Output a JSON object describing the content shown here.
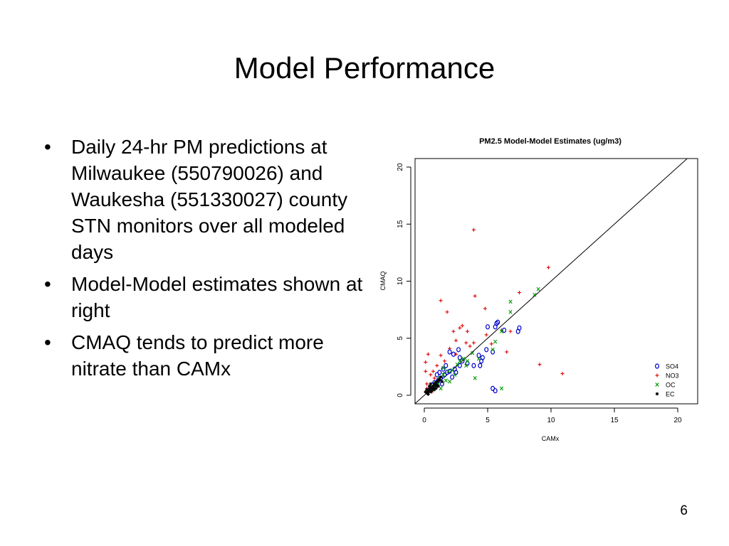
{
  "slide": {
    "title": "Model Performance",
    "page_number": "6",
    "bullets": [
      "Daily 24-hr PM predictions at Milwaukee (550790026) and  Waukesha (551330027) county STN monitors over all modeled days",
      "Model-Model estimates shown at right",
      "CMAQ tends to predict more nitrate than CAMx"
    ]
  },
  "chart_data": {
    "type": "scatter",
    "title": "PM2.5 Model-Model Estimates (ug/m3)",
    "xlabel": "CAMx",
    "ylabel": "CMAQ",
    "xlim": [
      0,
      20.5
    ],
    "ylim": [
      0,
      20.5
    ],
    "xticks": [
      "0",
      "5",
      "10",
      "15",
      "20"
    ],
    "yticks": [
      "0",
      "5",
      "10",
      "15",
      "20"
    ],
    "legend_position": "bottom-right",
    "reference_line": "y = x",
    "series": [
      {
        "name": "SO4",
        "marker": "o",
        "color": "#0000cc",
        "points": [
          [
            5.8,
            6.4
          ],
          [
            6.3,
            5.7
          ],
          [
            5.6,
            6.0
          ],
          [
            5.7,
            6.3
          ],
          [
            7.5,
            5.9
          ],
          [
            7.4,
            5.6
          ],
          [
            5.0,
            6.0
          ],
          [
            5.4,
            3.8
          ],
          [
            4.9,
            4.0
          ],
          [
            4.3,
            3.5
          ],
          [
            4.6,
            3.3
          ],
          [
            5.4,
            0.6
          ],
          [
            5.6,
            0.4
          ],
          [
            4.4,
            2.6
          ],
          [
            4.5,
            3.0
          ],
          [
            3.9,
            2.6
          ],
          [
            3.4,
            2.8
          ],
          [
            3.0,
            3.0
          ],
          [
            2.8,
            3.3
          ],
          [
            2.7,
            4.0
          ],
          [
            2.0,
            3.8
          ],
          [
            2.3,
            3.6
          ],
          [
            2.8,
            2.6
          ],
          [
            2.4,
            2.3
          ],
          [
            2.0,
            2.1
          ],
          [
            1.8,
            2.0
          ],
          [
            1.7,
            2.6
          ],
          [
            1.5,
            2.3
          ],
          [
            1.6,
            1.8
          ],
          [
            1.3,
            1.5
          ],
          [
            1.1,
            1.3
          ],
          [
            1.0,
            1.8
          ],
          [
            0.8,
            1.1
          ],
          [
            0.6,
            0.9
          ],
          [
            1.2,
            2.0
          ],
          [
            1.4,
            1.0
          ],
          [
            2.2,
            1.6
          ],
          [
            2.5,
            2.0
          ],
          [
            0.4,
            0.5
          ],
          [
            0.9,
            0.7
          ]
        ]
      },
      {
        "name": "NO3",
        "marker": "+",
        "color": "#dd0000",
        "points": [
          [
            3.9,
            14.5
          ],
          [
            9.8,
            11.2
          ],
          [
            7.5,
            9.0
          ],
          [
            4.0,
            8.7
          ],
          [
            1.3,
            8.3
          ],
          [
            1.8,
            7.3
          ],
          [
            4.8,
            7.6
          ],
          [
            6.8,
            5.6
          ],
          [
            6.1,
            5.7
          ],
          [
            3.0,
            6.1
          ],
          [
            2.8,
            5.9
          ],
          [
            3.4,
            5.6
          ],
          [
            2.3,
            5.6
          ],
          [
            4.9,
            5.3
          ],
          [
            3.3,
            4.6
          ],
          [
            2.5,
            4.8
          ],
          [
            3.9,
            4.6
          ],
          [
            3.6,
            4.3
          ],
          [
            2.0,
            4.1
          ],
          [
            2.5,
            3.6
          ],
          [
            1.3,
            3.5
          ],
          [
            0.3,
            3.6
          ],
          [
            0.1,
            2.9
          ],
          [
            0.1,
            2.1
          ],
          [
            0.5,
            1.8
          ],
          [
            0.7,
            2.1
          ],
          [
            9.1,
            2.7
          ],
          [
            10.9,
            1.9
          ],
          [
            5.3,
            4.5
          ],
          [
            6.5,
            3.8
          ],
          [
            0.2,
            1.0
          ],
          [
            0.4,
            0.6
          ],
          [
            0.1,
            0.3
          ],
          [
            0.3,
            0.1
          ],
          [
            0.6,
            0.3
          ],
          [
            0.2,
            0.6
          ],
          [
            1.6,
            3.0
          ],
          [
            1.0,
            2.6
          ],
          [
            0.8,
            1.5
          ]
        ]
      },
      {
        "name": "OC",
        "marker": "x",
        "color": "#009900",
        "points": [
          [
            9.0,
            9.3
          ],
          [
            8.7,
            8.8
          ],
          [
            6.8,
            8.2
          ],
          [
            6.8,
            7.3
          ],
          [
            6.1,
            5.6
          ],
          [
            5.6,
            4.7
          ],
          [
            4.3,
            3.2
          ],
          [
            3.8,
            3.7
          ],
          [
            4.0,
            1.5
          ],
          [
            3.4,
            3.0
          ],
          [
            3.1,
            3.2
          ],
          [
            2.6,
            2.7
          ],
          [
            2.2,
            2.2
          ],
          [
            1.9,
            2.1
          ],
          [
            1.5,
            1.8
          ],
          [
            1.2,
            1.5
          ],
          [
            2.0,
            1.2
          ],
          [
            1.1,
            1.0
          ],
          [
            0.9,
            0.9
          ],
          [
            0.8,
            1.1
          ],
          [
            6.1,
            0.6
          ],
          [
            5.4,
            4.0
          ],
          [
            3.3,
            2.6
          ],
          [
            2.8,
            3.0
          ],
          [
            1.7,
            1.3
          ],
          [
            1.3,
            0.6
          ],
          [
            0.6,
            0.8
          ],
          [
            2.4,
            1.8
          ],
          [
            1.5,
            2.4
          ],
          [
            0.7,
            0.5
          ]
        ]
      },
      {
        "name": "EC",
        "marker": "*",
        "color": "#000000",
        "points": [
          [
            0.2,
            0.2
          ],
          [
            0.3,
            0.3
          ],
          [
            0.4,
            0.5
          ],
          [
            0.5,
            0.6
          ],
          [
            0.6,
            0.7
          ],
          [
            0.7,
            0.8
          ],
          [
            0.8,
            1.0
          ],
          [
            0.9,
            1.1
          ],
          [
            1.0,
            1.2
          ],
          [
            1.1,
            1.3
          ],
          [
            1.2,
            1.4
          ],
          [
            0.3,
            0.1
          ],
          [
            0.5,
            0.3
          ],
          [
            0.6,
            0.4
          ],
          [
            0.7,
            0.6
          ],
          [
            0.8,
            0.5
          ],
          [
            0.9,
            0.8
          ],
          [
            1.0,
            0.9
          ],
          [
            0.4,
            0.8
          ],
          [
            0.5,
            1.0
          ],
          [
            1.3,
            1.6
          ],
          [
            1.4,
            1.2
          ],
          [
            0.2,
            0.5
          ],
          [
            0.1,
            0.3
          ],
          [
            0.9,
            0.6
          ],
          [
            1.1,
            0.8
          ]
        ]
      }
    ]
  }
}
